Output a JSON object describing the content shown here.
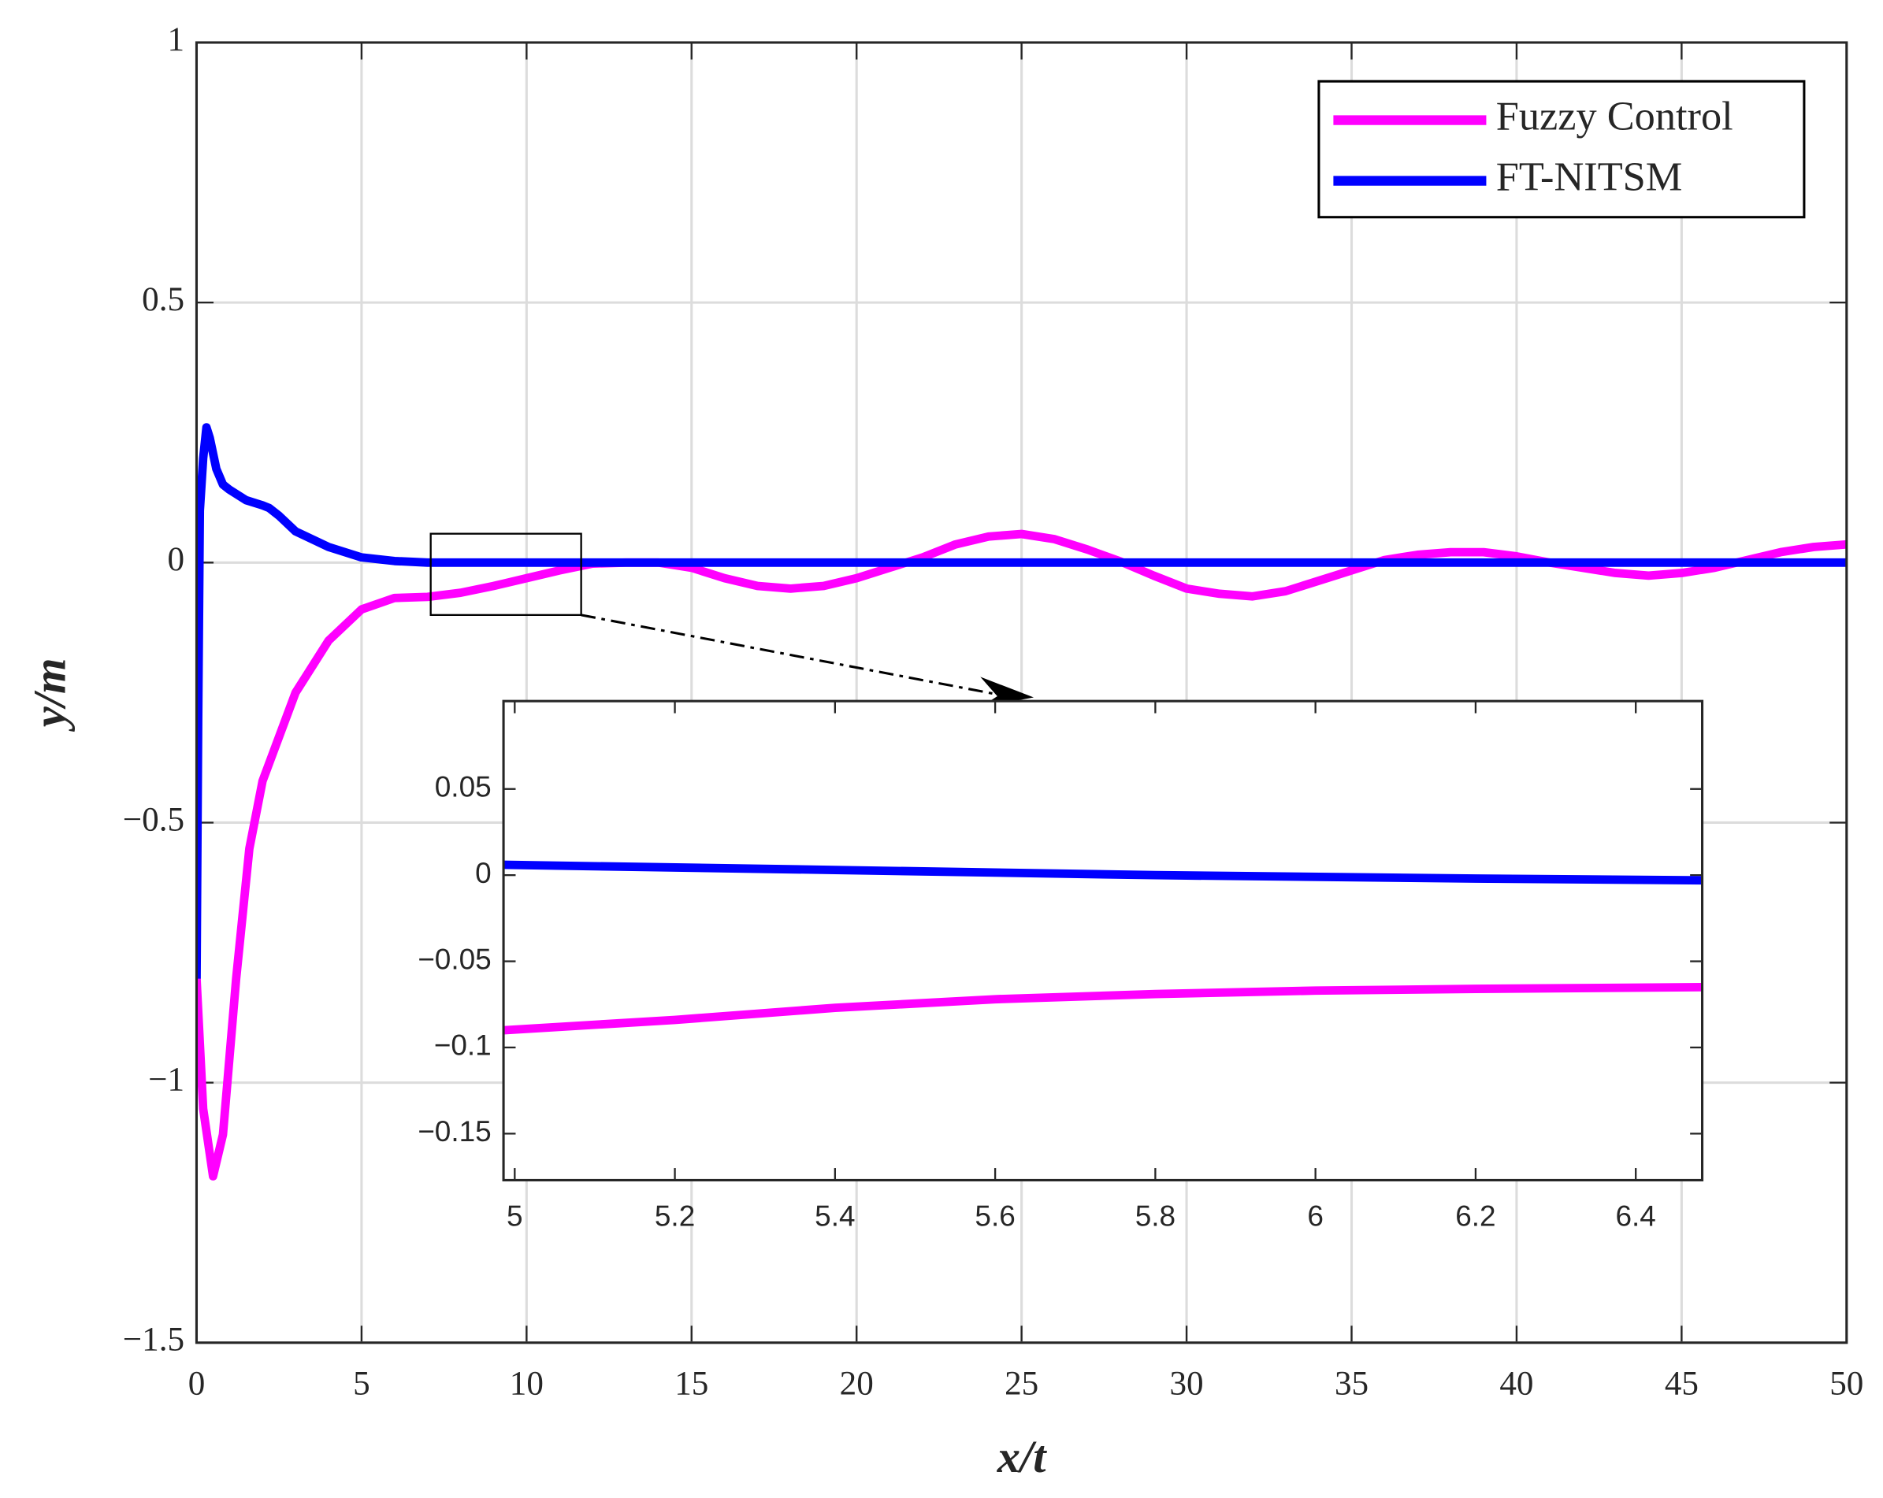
{
  "chart_data": [
    {
      "type": "line",
      "x_label": "x/t",
      "y_label": "y/m",
      "xlim": [
        0,
        50
      ],
      "ylim": [
        -1.5,
        1
      ],
      "xticks": [
        0,
        5,
        10,
        15,
        20,
        25,
        30,
        35,
        40,
        45,
        50
      ],
      "yticks": [
        {
          "value": -1.5,
          "label": "−1.5"
        },
        {
          "value": -1,
          "label": "−1"
        },
        {
          "value": -0.5,
          "label": "−0.5"
        },
        0,
        0.5,
        1
      ],
      "grid": true,
      "legend": "upper right",
      "series": [
        {
          "name": "Fuzzy Control",
          "color": "#ff00ff",
          "x": [
            0,
            0.2,
            0.5,
            0.8,
            1.2,
            1.6,
            2,
            3,
            4,
            5,
            6,
            7,
            8,
            9,
            10,
            11,
            12,
            13,
            14,
            15,
            16,
            17,
            18,
            19,
            20,
            21,
            22,
            23,
            24,
            25,
            26,
            27,
            28,
            29,
            30,
            31,
            32,
            33,
            34,
            35,
            36,
            37,
            38,
            39,
            40,
            41,
            42,
            43,
            44,
            45,
            46,
            47,
            48,
            49,
            50
          ],
          "values": [
            -0.8,
            -1.05,
            -1.18,
            -1.1,
            -0.8,
            -0.55,
            -0.42,
            -0.25,
            -0.15,
            -0.09,
            -0.068,
            -0.066,
            -0.058,
            -0.045,
            -0.03,
            -0.015,
            -0.002,
            0,
            0,
            -0.01,
            -0.03,
            -0.045,
            -0.05,
            -0.045,
            -0.03,
            -0.01,
            0.01,
            0.035,
            0.05,
            0.055,
            0.045,
            0.025,
            0.002,
            -0.025,
            -0.05,
            -0.06,
            -0.065,
            -0.055,
            -0.035,
            -0.015,
            0.005,
            0.015,
            0.02,
            0.02,
            0.012,
            0,
            -0.01,
            -0.02,
            -0.025,
            -0.02,
            -0.01,
            0.005,
            0.02,
            0.03,
            0.035
          ]
        },
        {
          "name": "FT-NITSM",
          "color": "#0000ff",
          "x": [
            0,
            0.05,
            0.1,
            0.2,
            0.3,
            0.4,
            0.6,
            0.8,
            1,
            1.5,
            2,
            2.2,
            2.5,
            3,
            4,
            5,
            6,
            7,
            50
          ],
          "values": [
            -0.8,
            -0.3,
            0.1,
            0.2,
            0.26,
            0.24,
            0.18,
            0.15,
            0.14,
            0.12,
            0.11,
            0.105,
            0.09,
            0.06,
            0.03,
            0.01,
            0.003,
            0,
            0
          ]
        }
      ]
    },
    {
      "type": "line",
      "xlim": [
        4.986,
        6.483
      ],
      "ylim": [
        -0.177,
        0.101
      ],
      "xticks": [
        5,
        5.2,
        5.4,
        5.6,
        5.8,
        6,
        6.2,
        6.4
      ],
      "yticks": [
        {
          "value": -0.15,
          "label": "−0.15"
        },
        {
          "value": -0.1,
          "label": "−0.1"
        },
        {
          "value": -0.05,
          "label": "−0.05"
        },
        0,
        0.05
      ],
      "grid": false,
      "series": [
        {
          "color": "#ff00ff",
          "x": [
            4.986,
            5.2,
            5.4,
            5.6,
            5.8,
            6,
            6.2,
            6.483
          ],
          "values": [
            -0.09,
            -0.084,
            -0.077,
            -0.072,
            -0.069,
            -0.067,
            -0.066,
            -0.065
          ]
        },
        {
          "color": "#0000ff",
          "x": [
            4.986,
            5.4,
            5.8,
            6.2,
            6.483
          ],
          "values": [
            0.006,
            0.003,
            0,
            -0.002,
            -0.003
          ]
        }
      ]
    }
  ]
}
